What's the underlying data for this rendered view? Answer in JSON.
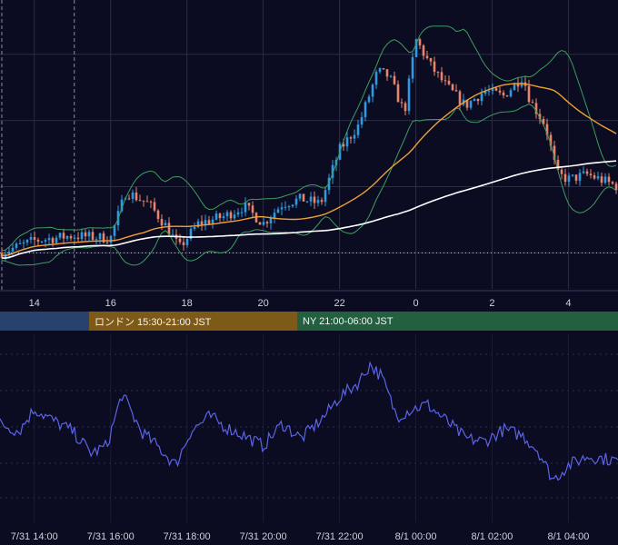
{
  "chart_data": [
    {
      "type": "candlestick",
      "panel": "price",
      "colors": {
        "background": "#0b0c22",
        "candle_up": "#2e9be0",
        "candle_down": "#e8836c",
        "bollinger": "#3f9c5e",
        "sma_orange": "#f0a032",
        "sma_white": "#ffffff",
        "grid": "#2b2d48"
      },
      "x_tick_labels": [
        "14",
        "16",
        "18",
        "20",
        "22",
        "0",
        "2",
        "4"
      ],
      "x_hours": [
        14,
        16,
        18,
        20,
        22,
        24,
        26,
        28
      ],
      "x_range": [
        13.1,
        29.3
      ],
      "y_range_relative": [
        0,
        1
      ],
      "guide_points": [
        [
          13.1,
          0.08
        ],
        [
          14.0,
          0.13
        ],
        [
          15.0,
          0.15
        ],
        [
          16.0,
          0.14
        ],
        [
          16.4,
          0.33
        ],
        [
          17.0,
          0.28
        ],
        [
          17.5,
          0.18
        ],
        [
          17.8,
          0.1
        ],
        [
          18.3,
          0.2
        ],
        [
          19.0,
          0.23
        ],
        [
          19.5,
          0.27
        ],
        [
          20.0,
          0.2
        ],
        [
          20.5,
          0.28
        ],
        [
          21.0,
          0.3
        ],
        [
          21.5,
          0.28
        ],
        [
          22.0,
          0.5
        ],
        [
          22.5,
          0.6
        ],
        [
          23.0,
          0.82
        ],
        [
          23.3,
          0.8
        ],
        [
          23.7,
          0.65
        ],
        [
          24.0,
          0.95
        ],
        [
          24.4,
          0.84
        ],
        [
          24.8,
          0.76
        ],
        [
          25.3,
          0.68
        ],
        [
          25.8,
          0.74
        ],
        [
          26.3,
          0.72
        ],
        [
          26.8,
          0.8
        ],
        [
          27.0,
          0.7
        ],
        [
          27.4,
          0.6
        ],
        [
          27.7,
          0.4
        ],
        [
          28.0,
          0.38
        ],
        [
          28.5,
          0.4
        ],
        [
          29.3,
          0.35
        ]
      ],
      "dotted_level": 0.08,
      "session_separators": [
        13.1,
        15.0
      ]
    },
    {
      "type": "line",
      "panel": "oscillator",
      "color": "#5b63e8",
      "x_tick_labels": [
        "7/31 14:00",
        "7/31 16:00",
        "7/31 18:00",
        "7/31 20:00",
        "7/31 22:00",
        "8/1 00:00",
        "8/1 02:00",
        "8/1 04:00"
      ],
      "guide_points": [
        [
          13.1,
          0.5
        ],
        [
          13.6,
          0.45
        ],
        [
          14.0,
          0.6
        ],
        [
          14.5,
          0.52
        ],
        [
          15.0,
          0.45
        ],
        [
          15.5,
          0.3
        ],
        [
          15.9,
          0.35
        ],
        [
          16.3,
          0.7
        ],
        [
          16.8,
          0.45
        ],
        [
          17.3,
          0.33
        ],
        [
          17.7,
          0.22
        ],
        [
          18.1,
          0.45
        ],
        [
          18.6,
          0.55
        ],
        [
          19.0,
          0.48
        ],
        [
          19.5,
          0.42
        ],
        [
          20.0,
          0.35
        ],
        [
          20.5,
          0.5
        ],
        [
          21.0,
          0.4
        ],
        [
          21.6,
          0.55
        ],
        [
          22.0,
          0.68
        ],
        [
          22.5,
          0.78
        ],
        [
          22.8,
          0.9
        ],
        [
          23.1,
          0.82
        ],
        [
          23.5,
          0.55
        ],
        [
          23.9,
          0.6
        ],
        [
          24.3,
          0.63
        ],
        [
          24.8,
          0.52
        ],
        [
          25.3,
          0.4
        ],
        [
          25.8,
          0.38
        ],
        [
          26.3,
          0.46
        ],
        [
          26.8,
          0.42
        ],
        [
          27.2,
          0.32
        ],
        [
          27.6,
          0.12
        ],
        [
          28.0,
          0.22
        ],
        [
          28.5,
          0.28
        ],
        [
          29.3,
          0.25
        ]
      ]
    }
  ],
  "sessions": [
    {
      "label": "",
      "color": "#27426c"
    },
    {
      "label": "ロンドン 15:30-21:00 JST",
      "color": "#7d5a18"
    },
    {
      "label": "NY 21:00-06:00 JST",
      "color": "#236040"
    }
  ]
}
